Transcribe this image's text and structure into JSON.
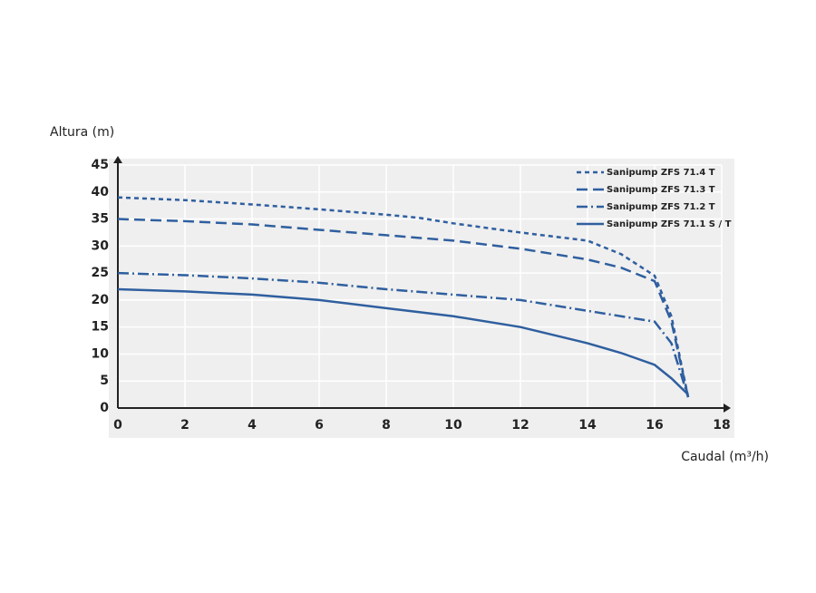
{
  "chart_data": {
    "type": "line",
    "y_label": "Altura (m)",
    "x_label": "Caudal (m³/h)",
    "xlim": [
      0,
      18
    ],
    "xticks": [
      0,
      2,
      4,
      6,
      8,
      10,
      12,
      14,
      16,
      18
    ],
    "ylim": [
      0,
      45
    ],
    "yticks": [
      0,
      5,
      10,
      15,
      20,
      25,
      30,
      35,
      40,
      45
    ],
    "grid": true,
    "legend": "top-right",
    "series": [
      {
        "name": "Sanipump ZFS 71.4 T",
        "color": "#2f5f9f",
        "dash": "5,4",
        "x": [
          0,
          2,
          4,
          6,
          8,
          9,
          10,
          12,
          14,
          15,
          16,
          16.5,
          17
        ],
        "values": [
          39,
          38.5,
          37.7,
          36.8,
          35.8,
          35.2,
          34.2,
          32.5,
          31,
          28.5,
          24.5,
          17,
          2
        ]
      },
      {
        "name": "Sanipump ZFS 71.3 T",
        "color": "#2f5f9f",
        "dash": "12,6",
        "x": [
          0,
          2,
          4,
          6,
          8,
          10,
          12,
          14,
          15,
          16,
          16.5,
          17
        ],
        "values": [
          35,
          34.6,
          34,
          33,
          32,
          31,
          29.5,
          27.5,
          26,
          23.5,
          16,
          2
        ]
      },
      {
        "name": "Sanipump ZFS 71.2 T",
        "color": "#2f5f9f",
        "dash": "12,4,2,4",
        "x": [
          0,
          2,
          4,
          6,
          8,
          10,
          12,
          14,
          16,
          16.5,
          17
        ],
        "values": [
          25,
          24.6,
          24,
          23.2,
          22,
          21,
          20,
          18,
          16,
          12,
          2
        ]
      },
      {
        "name": "Sanipump ZFS 71.1 S / T",
        "color": "#2f5f9f",
        "dash": "none",
        "x": [
          0,
          2,
          4,
          6,
          8,
          10,
          12,
          14,
          15,
          16,
          16.5,
          17
        ],
        "values": [
          22,
          21.6,
          21,
          20,
          18.5,
          17,
          15,
          12,
          10.2,
          8,
          5.5,
          2.5
        ]
      }
    ]
  }
}
